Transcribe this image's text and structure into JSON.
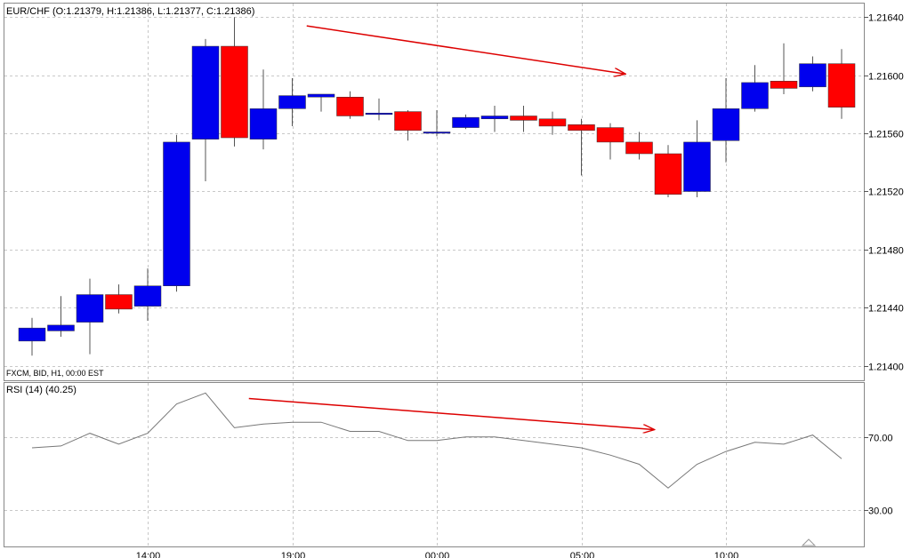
{
  "chart_data": [
    {
      "type": "candlestick",
      "title": "EUR/CHF (O:1.21379, H:1.21386, L:1.21377, C:1.21386)",
      "source_label": "FXCM, BID, H1, 00:00 EST",
      "ylim": [
        1.2139,
        1.2165
      ],
      "y_ticks": [
        "1.21640",
        "1.21600",
        "1.21560",
        "1.21520",
        "1.21480",
        "1.21440",
        "1.21400"
      ],
      "grid": true,
      "up_color": "#0000ee",
      "down_color": "#ff0000",
      "candles": [
        {
          "o": 1.21417,
          "h": 1.21433,
          "l": 1.21407,
          "c": 1.21426
        },
        {
          "o": 1.21424,
          "h": 1.21448,
          "l": 1.2142,
          "c": 1.21428
        },
        {
          "o": 1.2143,
          "h": 1.2146,
          "l": 1.21408,
          "c": 1.21449
        },
        {
          "o": 1.21449,
          "h": 1.21456,
          "l": 1.21436,
          "c": 1.21439
        },
        {
          "o": 1.21441,
          "h": 1.21467,
          "l": 1.21431,
          "c": 1.21455
        },
        {
          "o": 1.21455,
          "h": 1.21559,
          "l": 1.21451,
          "c": 1.21554
        },
        {
          "o": 1.21556,
          "h": 1.21625,
          "l": 1.21527,
          "c": 1.2162
        },
        {
          "o": 1.2162,
          "h": 1.2164,
          "l": 1.21551,
          "c": 1.21557
        },
        {
          "o": 1.21556,
          "h": 1.21604,
          "l": 1.21549,
          "c": 1.21577
        },
        {
          "o": 1.21577,
          "h": 1.21598,
          "l": 1.21565,
          "c": 1.21586
        },
        {
          "o": 1.21585,
          "h": 1.21587,
          "l": 1.21575,
          "c": 1.21587
        },
        {
          "o": 1.21585,
          "h": 1.21589,
          "l": 1.2157,
          "c": 1.21572
        },
        {
          "o": 1.21573,
          "h": 1.21584,
          "l": 1.21569,
          "c": 1.21574
        },
        {
          "o": 1.21575,
          "h": 1.21576,
          "l": 1.21555,
          "c": 1.21562
        },
        {
          "o": 1.21561,
          "h": 1.21576,
          "l": 1.21558,
          "c": 1.21561
        },
        {
          "o": 1.21564,
          "h": 1.21573,
          "l": 1.21563,
          "c": 1.21571
        },
        {
          "o": 1.2157,
          "h": 1.21579,
          "l": 1.21561,
          "c": 1.21572
        },
        {
          "o": 1.21572,
          "h": 1.21579,
          "l": 1.21561,
          "c": 1.21569
        },
        {
          "o": 1.2157,
          "h": 1.21575,
          "l": 1.21559,
          "c": 1.21565
        },
        {
          "o": 1.21566,
          "h": 1.2157,
          "l": 1.21531,
          "c": 1.21562
        },
        {
          "o": 1.21564,
          "h": 1.21567,
          "l": 1.21542,
          "c": 1.21554
        },
        {
          "o": 1.21554,
          "h": 1.21561,
          "l": 1.21542,
          "c": 1.21546
        },
        {
          "o": 1.21546,
          "h": 1.21552,
          "l": 1.21516,
          "c": 1.21518
        },
        {
          "o": 1.2152,
          "h": 1.21569,
          "l": 1.21516,
          "c": 1.21554
        },
        {
          "o": 1.21555,
          "h": 1.21598,
          "l": 1.2154,
          "c": 1.21577
        },
        {
          "o": 1.21577,
          "h": 1.21607,
          "l": 1.21575,
          "c": 1.21595
        },
        {
          "o": 1.21596,
          "h": 1.21622,
          "l": 1.21587,
          "c": 1.21591
        },
        {
          "o": 1.21592,
          "h": 1.21613,
          "l": 1.21589,
          "c": 1.21608
        },
        {
          "o": 1.21608,
          "h": 1.21618,
          "l": 1.2157,
          "c": 1.21578
        }
      ],
      "annotation_arrow": {
        "from_candle": 9.5,
        "from_value": 1.21634,
        "to_candle": 20.5,
        "to_value": 1.21601,
        "color": "#dd0000"
      }
    },
    {
      "type": "line",
      "title": "RSI (14)  (40.25)",
      "ylim": [
        10,
        100
      ],
      "y_ticks": [
        "70.00",
        "30.00"
      ],
      "grid": true,
      "line_color": "#777777",
      "values": [
        64,
        65,
        72,
        66,
        72,
        88,
        94,
        75,
        77,
        78,
        78,
        73,
        73,
        68,
        68,
        70,
        70,
        68,
        66,
        64,
        60,
        55,
        42,
        55,
        62,
        67,
        66,
        71,
        58
      ],
      "annotation_arrow": {
        "from_candle": 7.5,
        "from_value": 91,
        "to_candle": 21.5,
        "to_value": 74,
        "color": "#dd0000"
      }
    }
  ],
  "x_axis": {
    "tick_labels": [
      {
        "candle": 4,
        "label": "14:00"
      },
      {
        "candle": 9,
        "label": "19:00"
      },
      {
        "candle": 14,
        "label": "00:00"
      },
      {
        "candle": 19,
        "label": "05:00"
      },
      {
        "candle": 24,
        "label": "10:00"
      }
    ]
  }
}
